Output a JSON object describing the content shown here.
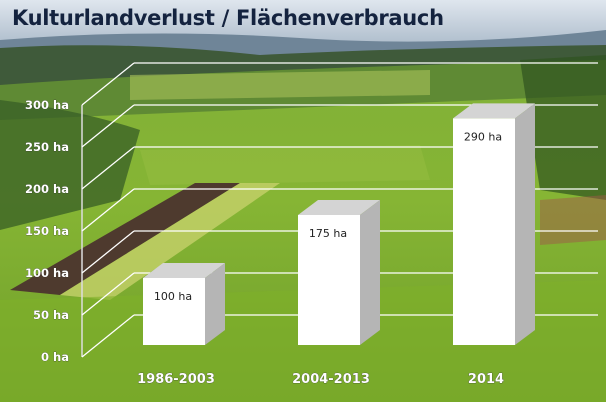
{
  "title": "Kulturlandverlust  / Flächenverbrauch",
  "chart_data": {
    "type": "bar",
    "title": "Kulturlandverlust  / Flächenverbrauch",
    "categories": [
      "1986-2003",
      "2004-2013",
      "2014"
    ],
    "values": [
      100,
      175,
      290
    ],
    "data_labels": [
      "100 ha",
      "175 ha",
      "290 ha"
    ],
    "unit": "ha",
    "ylim": [
      0,
      300
    ],
    "yticks": [
      0,
      50,
      100,
      150,
      200,
      250,
      300
    ],
    "ytick_labels": [
      "0 ha",
      "50 ha",
      "100 ha",
      "150 ha",
      "200 ha",
      "250 ha",
      "300 ha"
    ],
    "grid": true,
    "style": "3d",
    "bar_color": "#ffffff",
    "bar_side_color": "#b5b5b5",
    "bar_top_color": "#d4d4d4",
    "gridline_color": "#ffffff",
    "title_color": "#14233f"
  }
}
